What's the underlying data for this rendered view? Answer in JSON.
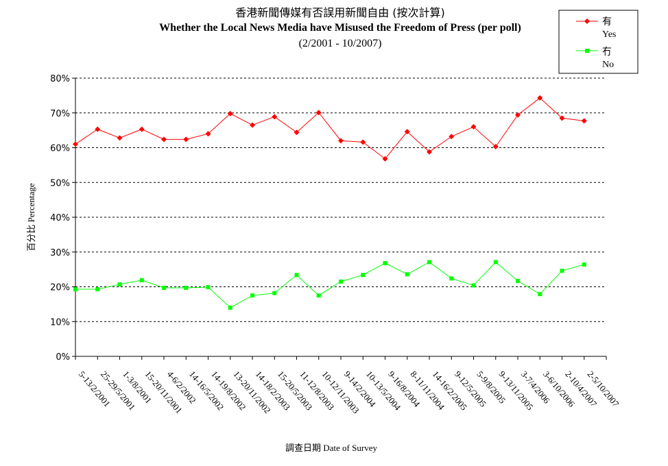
{
  "chart_data": {
    "type": "line",
    "title": "香港新聞傳媒有否誤用新聞自由 (按次計算)",
    "subtitle": "Whether the Local News Media have Misused the Freedom of Press (per poll)",
    "date_range": "(2/2001 - 10/2007)",
    "xlabel": "調查日期 Date of Survey",
    "ylabel": "百分比 Percentage",
    "ylim": [
      0,
      80
    ],
    "yticks": [
      "0%",
      "10%",
      "20%",
      "30%",
      "40%",
      "50%",
      "60%",
      "70%",
      "80%"
    ],
    "grid": "horizontal dashed",
    "legend_position": "top-right",
    "categories": [
      "5-13/2/2001",
      "25-29/5/2001",
      "1-3/8/2001",
      "15-20/11/2001",
      "4-6/2/2002",
      "14-16/5/2002",
      "14-19/8/2002",
      "13-20/11/2002",
      "14-18/2/2003",
      "15-20/5/2003",
      "11-12/8/2003",
      "10-12/11/2003",
      "9-14/2/2004",
      "10-13/5/2004",
      "9-16/8/2004",
      "8-11/11/2004",
      "14-16/2/2005",
      "9-12/5/2005",
      "5-9/8/2005",
      "9-13/11/2005",
      "3-7/4/2006",
      "3-6/10/2006",
      "2-10/4/2007",
      "2-5/10/2007"
    ],
    "series": [
      {
        "name": "有",
        "name_en": "Yes",
        "color": "#ff0000",
        "marker": "diamond",
        "values": [
          61.0,
          65.3,
          62.8,
          65.3,
          62.4,
          62.4,
          64.0,
          69.8,
          66.5,
          68.9,
          64.4,
          70.1,
          62.0,
          61.6,
          56.8,
          64.6,
          58.8,
          63.2,
          66.0,
          60.3,
          69.4,
          74.3,
          68.5,
          67.7
        ]
      },
      {
        "name": "冇",
        "name_en": "No",
        "color": "#00ff00",
        "marker": "square",
        "values": [
          19.3,
          19.3,
          20.7,
          21.9,
          19.7,
          19.7,
          19.9,
          14.0,
          17.5,
          18.2,
          23.4,
          17.5,
          21.5,
          23.4,
          26.8,
          23.6,
          27.1,
          22.4,
          20.4,
          27.1,
          21.7,
          17.9,
          24.6,
          26.4
        ]
      }
    ]
  }
}
